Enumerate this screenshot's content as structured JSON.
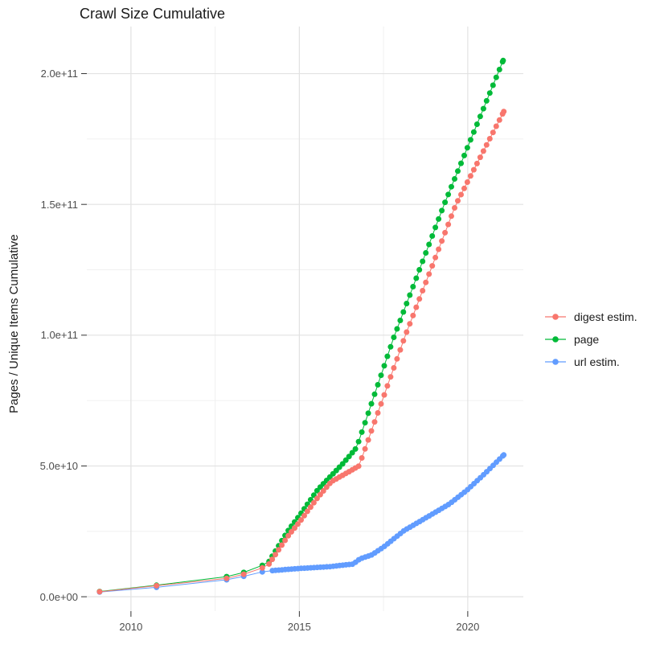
{
  "title": "Crawl Size Cumulative",
  "y_axis_title": "Pages / Unique Items Cumulative",
  "legend": {
    "position": "right",
    "items": [
      {
        "id": "digest",
        "label": "digest estim.",
        "color": "#F8766D"
      },
      {
        "id": "page",
        "label": "page",
        "color": "#00BA38"
      },
      {
        "id": "url",
        "label": "url estim.",
        "color": "#619CFF"
      }
    ]
  },
  "chart_data": {
    "type": "scatter",
    "title": "Crawl Size Cumulative",
    "xlabel": "",
    "ylabel": "Pages / Unique Items Cumulative",
    "unit": "billions of pages / unique items (1e9)",
    "x_range": [
      2008.69,
      2021.65
    ],
    "y_range_e9": [
      -5.5,
      218
    ],
    "grid": "on",
    "x_ticks": [
      {
        "label": "2010",
        "value": 2010
      },
      {
        "label": "2015",
        "value": 2015
      },
      {
        "label": "2020",
        "value": 2020
      }
    ],
    "x_minor_ticks": [
      2012.5,
      2017.5
    ],
    "y_ticks": [
      {
        "label": "0.0e+00",
        "value": 0
      },
      {
        "label": "5.0e+10",
        "value": 50
      },
      {
        "label": "1.0e+11",
        "value": 100
      },
      {
        "label": "1.5e+11",
        "value": 150
      },
      {
        "label": "2.0e+11",
        "value": 200
      }
    ],
    "y_minor_ticks": [
      25,
      75,
      125,
      175
    ],
    "crawl_dot_interval_years": 0.095,
    "discrete_head_points": 5,
    "series": [
      {
        "name": "page",
        "color": "#00BA38",
        "points_year_e9": [
          [
            2009.07,
            2.0
          ],
          [
            2010.76,
            4.4
          ],
          [
            2012.84,
            7.7
          ],
          [
            2013.35,
            9.3
          ],
          [
            2013.9,
            12.0
          ],
          [
            2014.1,
            13.5
          ],
          [
            2014.65,
            25.0
          ],
          [
            2015.0,
            31.0
          ],
          [
            2015.55,
            41.0
          ],
          [
            2016.0,
            47.0
          ],
          [
            2016.3,
            51.0
          ],
          [
            2016.7,
            57.0
          ],
          [
            2017.8,
            99.0
          ],
          [
            2019.3,
            150.0
          ],
          [
            2021.05,
            205.0
          ]
        ]
      },
      {
        "name": "url estim.",
        "color": "#619CFF",
        "points_year_e9": [
          [
            2009.07,
            1.8
          ],
          [
            2010.76,
            3.6
          ],
          [
            2012.84,
            6.5
          ],
          [
            2013.35,
            7.8
          ],
          [
            2013.9,
            9.5
          ],
          [
            2014.2,
            10.0
          ],
          [
            2015.0,
            10.8
          ],
          [
            2015.9,
            11.5
          ],
          [
            2016.6,
            12.5
          ],
          [
            2016.8,
            14.5
          ],
          [
            2017.15,
            16.0
          ],
          [
            2017.5,
            19.0
          ],
          [
            2018.1,
            25.2
          ],
          [
            2019.0,
            32.0
          ],
          [
            2019.46,
            35.5
          ],
          [
            2020.0,
            41.0
          ],
          [
            2020.5,
            47.0
          ],
          [
            2021.07,
            54.2
          ]
        ]
      },
      {
        "name": "digest estim.",
        "color": "#F8766D",
        "points_year_e9": [
          [
            2009.07,
            1.9
          ],
          [
            2010.76,
            4.2
          ],
          [
            2012.84,
            7.0
          ],
          [
            2013.35,
            8.6
          ],
          [
            2013.9,
            11.0
          ],
          [
            2014.1,
            12.5
          ],
          [
            2014.65,
            23.0
          ],
          [
            2015.0,
            28.5
          ],
          [
            2015.55,
            38.0
          ],
          [
            2015.95,
            44.0
          ],
          [
            2016.5,
            48.0
          ],
          [
            2016.77,
            50.0
          ],
          [
            2018.15,
            100.0
          ],
          [
            2019.65,
            150.0
          ],
          [
            2021.07,
            185.5
          ]
        ]
      }
    ]
  },
  "style": {
    "grid_major_color": "#e2e2e2",
    "grid_minor_color": "#f0f0f0",
    "tick_mark_color": "#333333",
    "dot_radius": 3.5
  }
}
